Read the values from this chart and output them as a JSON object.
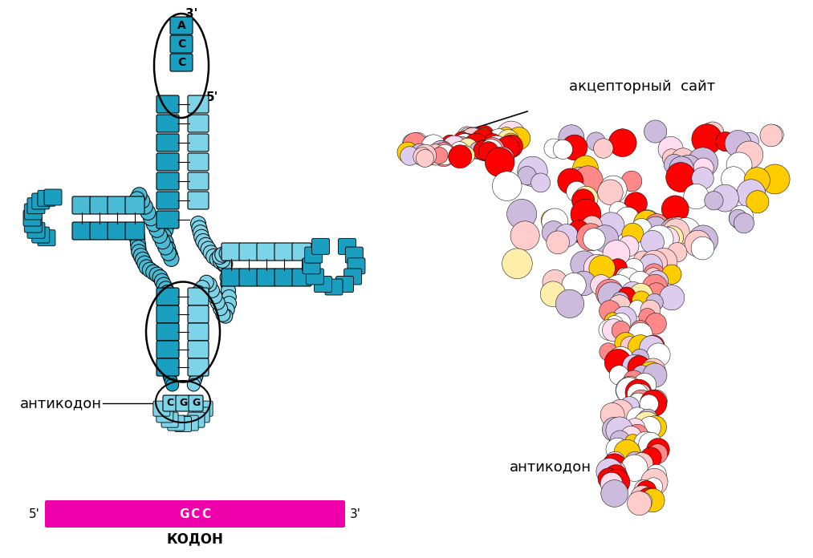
{
  "bg_color": "#ffffff",
  "dark_blue": "#1a9fc0",
  "light_blue": "#7dd4e8",
  "medium_blue": "#4bbad4",
  "codon_color": "#ee00aa",
  "anticodon_left": "антикодон",
  "anticodon_right": "антикодон",
  "acceptor_site": "акцепторный  сайт",
  "codon_label": "КОДОН",
  "font_size": 13
}
